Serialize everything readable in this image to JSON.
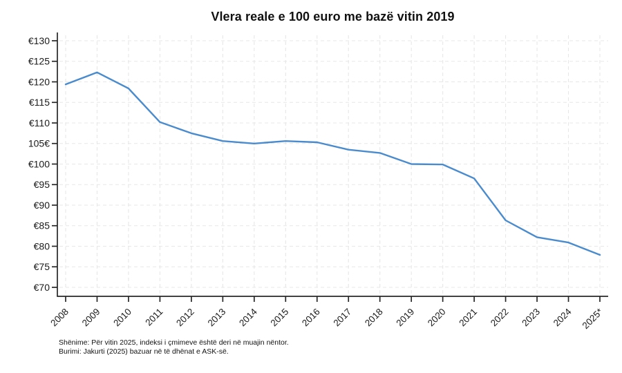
{
  "chart_data": {
    "type": "line",
    "title": "Vlera reale e 100 euro me bazë vitin 2019",
    "categories": [
      "2008",
      "2009",
      "2010",
      "2011",
      "2012",
      "2013",
      "2014",
      "2015",
      "2016",
      "2017",
      "2018",
      "2019",
      "2020",
      "2021",
      "2022",
      "2023",
      "2024",
      "2025*"
    ],
    "series": [
      {
        "name": "Vlera reale e 100 euro",
        "values": [
          119.4,
          122.3,
          118.4,
          110.2,
          107.5,
          105.6,
          105.0,
          105.6,
          105.3,
          103.5,
          102.7,
          100.0,
          99.9,
          96.5,
          86.3,
          82.2,
          80.9,
          77.9
        ]
      }
    ],
    "y_ticks": [
      {
        "label": "€130",
        "value": 130
      },
      {
        "label": "€125",
        "value": 125
      },
      {
        "label": "€120",
        "value": 120
      },
      {
        "label": "€115",
        "value": 115
      },
      {
        "label": "€110",
        "value": 110
      },
      {
        "label": "105€",
        "value": 105
      },
      {
        "label": "€100",
        "value": 100
      },
      {
        "label": "€95",
        "value": 95
      },
      {
        "label": "€90",
        "value": 90
      },
      {
        "label": "€85",
        "value": 85
      },
      {
        "label": "€80",
        "value": 80
      },
      {
        "label": "€75",
        "value": 75
      },
      {
        "label": "€70",
        "value": 70
      }
    ],
    "ylim": [
      70,
      130
    ],
    "grid": "dashed both axes",
    "legend_position": "none",
    "notes": [
      "Shënime: Për vitin 2025, indeksi i çmimeve është deri në muajin nëntor.",
      "Burimi: Jakurti (2025) bazuar në të dhënat e ASK-së."
    ],
    "colors": {
      "line": "#4a8bce",
      "axis": "#262626",
      "tick_text": "#1a1a1a",
      "grid": "#e7e7e7",
      "background": "#ffffff"
    }
  }
}
